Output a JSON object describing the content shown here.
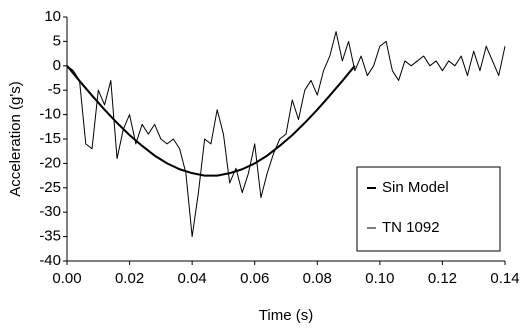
{
  "chart_data": {
    "type": "line",
    "xlabel": "Time (s)",
    "ylabel": "Acceleration (g's)",
    "xlim": [
      0,
      0.14
    ],
    "ylim": [
      -40,
      10
    ],
    "xticks": [
      {
        "value": 0,
        "label": "0.00"
      },
      0.02,
      0.04,
      0.06,
      0.08,
      {
        "value": 0.1,
        "label": "0.10"
      },
      0.12,
      0.14
    ],
    "yticks": [
      10,
      5,
      0,
      -5,
      -10,
      -15,
      -20,
      -25,
      -30,
      -35,
      -40
    ],
    "grid": false,
    "legend": "lower right",
    "series": [
      {
        "name": "Sin Model",
        "color": "#000000",
        "width": 2,
        "x": [
          0,
          0.004,
          0.008,
          0.012,
          0.016,
          0.02,
          0.024,
          0.028,
          0.032,
          0.036,
          0.04,
          0.044,
          0.048,
          0.052,
          0.056,
          0.06,
          0.064,
          0.068,
          0.072,
          0.076,
          0.08,
          0.084,
          0.088,
          0.092
        ],
        "values": [
          0,
          -3.1,
          -6.1,
          -9,
          -11.7,
          -14.2,
          -16.4,
          -18.4,
          -20,
          -21.2,
          -22,
          -22.5,
          -22.5,
          -22,
          -21.2,
          -20,
          -18.4,
          -16.4,
          -14.2,
          -11.7,
          -9,
          -6.1,
          -3.1,
          0
        ]
      },
      {
        "name": "TN 1092",
        "color": "#000000",
        "width": 1,
        "x": [
          0,
          0.002,
          0.004,
          0.006,
          0.008,
          0.01,
          0.012,
          0.014,
          0.016,
          0.018,
          0.02,
          0.022,
          0.024,
          0.026,
          0.028,
          0.03,
          0.032,
          0.034,
          0.036,
          0.038,
          0.04,
          0.042,
          0.044,
          0.046,
          0.048,
          0.05,
          0.052,
          0.054,
          0.056,
          0.058,
          0.06,
          0.062,
          0.064,
          0.066,
          0.068,
          0.07,
          0.072,
          0.074,
          0.076,
          0.078,
          0.08,
          0.082,
          0.084,
          0.086,
          0.088,
          0.09,
          0.092,
          0.094,
          0.096,
          0.098,
          0.1,
          0.102,
          0.104,
          0.106,
          0.108,
          0.11,
          0.112,
          0.114,
          0.116,
          0.118,
          0.12,
          0.122,
          0.124,
          0.126,
          0.128,
          0.13,
          0.132,
          0.134,
          0.136,
          0.138,
          0.14
        ],
        "values": [
          0,
          -1,
          -3,
          -16,
          -17,
          -5,
          -8,
          -3,
          -19,
          -13,
          -10,
          -16,
          -12,
          -14,
          -12,
          -15,
          -16,
          -15,
          -17,
          -22,
          -35,
          -26,
          -15,
          -16,
          -9,
          -14,
          -24,
          -21,
          -26,
          -22,
          -16,
          -27,
          -22,
          -18,
          -15,
          -14,
          -7,
          -11,
          -5,
          -3,
          -6,
          -1,
          2,
          7,
          1,
          5,
          -1,
          2,
          -2,
          0,
          4,
          5,
          -1,
          -3,
          1,
          0,
          1,
          2,
          0,
          1,
          -1,
          1,
          0,
          2,
          -2,
          3,
          -1,
          4,
          1,
          -2,
          4
        ]
      }
    ]
  }
}
